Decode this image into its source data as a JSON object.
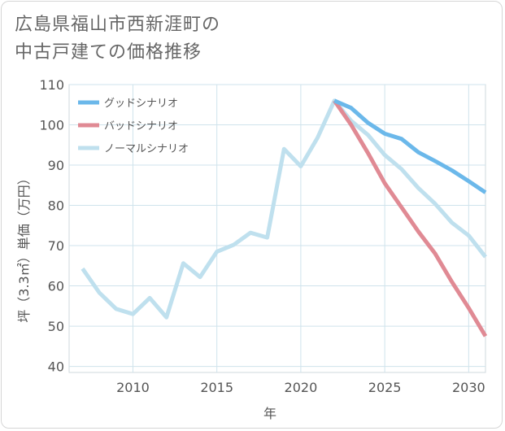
{
  "title": {
    "line1": "広島県福山市西新涯町の",
    "line2": "中古戸建ての価格推移"
  },
  "chart_data": {
    "type": "line",
    "xlabel": "年",
    "ylabel": "坪（3.3㎡）単価（万円）",
    "xlim": [
      2006.2,
      2031
    ],
    "ylim": [
      38.5,
      110
    ],
    "xticks": [
      2010,
      2015,
      2020,
      2025,
      2030
    ],
    "yticks": [
      40,
      50,
      60,
      70,
      80,
      90,
      100,
      110
    ],
    "grid": true,
    "legend_position": "top-left",
    "series": [
      {
        "name": "グッドシナリオ",
        "color": "#6bb8ea",
        "points": [
          [
            2022,
            106
          ],
          [
            2023,
            104.2
          ],
          [
            2024,
            100.5
          ],
          [
            2025,
            97.8
          ],
          [
            2026,
            96.5
          ],
          [
            2027,
            93.2
          ],
          [
            2028,
            91
          ],
          [
            2029,
            88.7
          ],
          [
            2030,
            86
          ],
          [
            2031,
            83.2
          ]
        ]
      },
      {
        "name": "バッドシナリオ",
        "color": "#e08a94",
        "points": [
          [
            2022,
            106
          ],
          [
            2023,
            100
          ],
          [
            2024,
            93
          ],
          [
            2025,
            85.5
          ],
          [
            2026,
            79.5
          ],
          [
            2027,
            73.5
          ],
          [
            2028,
            68
          ],
          [
            2029,
            61
          ],
          [
            2030,
            54.5
          ],
          [
            2031,
            47.5
          ]
        ]
      },
      {
        "name": "ノーマルシナリオ",
        "color": "#bfe0ee",
        "points": [
          [
            2007,
            64.3
          ],
          [
            2008,
            58.3
          ],
          [
            2009,
            54.3
          ],
          [
            2010,
            53
          ],
          [
            2011,
            57
          ],
          [
            2012,
            52.2
          ],
          [
            2013,
            65.6
          ],
          [
            2014,
            62.2
          ],
          [
            2015,
            68.5
          ],
          [
            2016,
            70.2
          ],
          [
            2017,
            73.2
          ],
          [
            2018,
            72
          ],
          [
            2019,
            94
          ],
          [
            2020,
            89.7
          ],
          [
            2021,
            96.8
          ],
          [
            2022,
            106
          ],
          [
            2023,
            101
          ],
          [
            2024,
            97.5
          ],
          [
            2025,
            92.5
          ],
          [
            2026,
            89
          ],
          [
            2027,
            84.3
          ],
          [
            2028,
            80.4
          ],
          [
            2029,
            75.7
          ],
          [
            2030,
            72.5
          ],
          [
            2031,
            67.2
          ]
        ]
      }
    ]
  }
}
